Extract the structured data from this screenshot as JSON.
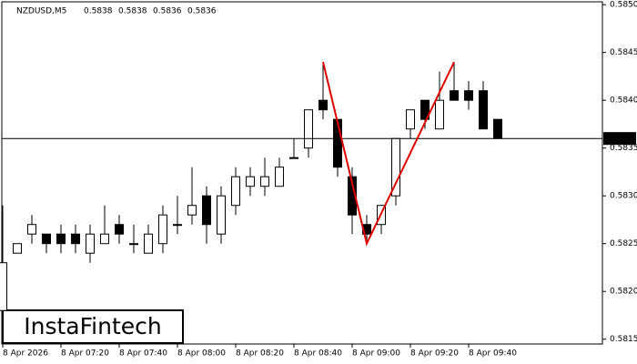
{
  "chart_data": {
    "type": "candlestick",
    "title": "NZDUSD,M5",
    "quote": [
      0.5838,
      0.5838,
      0.5836,
      0.5836
    ],
    "logo": "InstaFintech",
    "categories": [
      "8 Apr 2026",
      null,
      null,
      null,
      "8 Apr 07:20",
      null,
      null,
      null,
      "8 Apr 07:40",
      null,
      null,
      null,
      "8 Apr 08:00",
      null,
      null,
      null,
      "8 Apr 08:20",
      null,
      null,
      null,
      "8 Apr 08:40",
      null,
      null,
      null,
      "8 Apr 09:00",
      null,
      null,
      null,
      "8 Apr 09:20",
      null,
      null,
      null,
      "8 Apr 09:40",
      null,
      null
    ],
    "open": [
      0.5818,
      0.5824,
      0.5826,
      0.5826,
      0.5826,
      0.5826,
      0.5824,
      0.5825,
      0.5827,
      0.5825,
      0.5824,
      0.5825,
      0.5827,
      0.5828,
      0.583,
      0.5826,
      0.5829,
      0.5831,
      0.5831,
      0.5831,
      0.5834,
      0.5835,
      0.584,
      0.5838,
      0.5832,
      0.5827,
      0.5827,
      0.583,
      0.5837,
      0.584,
      0.5837,
      0.5841,
      0.5841,
      0.5841,
      0.5838
    ],
    "high": [
      0.5829,
      0.5825,
      0.5828,
      0.5826,
      0.5827,
      0.5827,
      0.5827,
      0.5829,
      0.5828,
      0.5827,
      0.5827,
      0.5829,
      0.583,
      0.5833,
      0.5831,
      0.5831,
      0.5833,
      0.5833,
      0.5834,
      0.5834,
      0.5836,
      0.5839,
      0.5844,
      0.5838,
      0.5833,
      0.5828,
      0.5829,
      0.5836,
      0.5839,
      0.584,
      0.5843,
      0.5844,
      0.5842,
      0.5842,
      0.5838
    ],
    "low": [
      0.5818,
      0.5824,
      0.5825,
      0.5824,
      0.5824,
      0.5824,
      0.5823,
      0.5825,
      0.5825,
      0.5824,
      0.5824,
      0.5824,
      0.5826,
      0.5827,
      0.5825,
      0.5825,
      0.5828,
      0.583,
      0.583,
      0.5831,
      0.5834,
      0.5834,
      0.5838,
      0.5832,
      0.5826,
      0.5825,
      0.5826,
      0.5829,
      0.5836,
      0.5837,
      0.5837,
      0.584,
      0.5839,
      0.5837,
      0.5836
    ],
    "close": [
      0.5823,
      0.5825,
      0.5827,
      0.5825,
      0.5825,
      0.5825,
      0.5826,
      0.5826,
      0.5826,
      0.5825,
      0.5826,
      0.5828,
      0.5827,
      0.5829,
      0.5827,
      0.583,
      0.5832,
      0.5832,
      0.5832,
      0.5833,
      0.5834,
      0.5839,
      0.5839,
      0.5833,
      0.5828,
      0.5826,
      0.5829,
      0.5836,
      0.5839,
      0.5838,
      0.584,
      0.584,
      0.584,
      0.5837,
      0.5836
    ],
    "up_color": "#ffffff",
    "down_color": "#000000",
    "current_price": 0.5836,
    "pattern": {
      "color": "#e00000",
      "x": [
        22,
        25,
        31
      ],
      "values": [
        0.5844,
        0.5825,
        0.5844
      ]
    },
    "ylim": [
      0.58145,
      0.58503
    ],
    "yticks": [
      0.5815,
      {
        "value": 0.582,
        "label": "0.5820"
      },
      0.5825,
      {
        "value": 0.583,
        "label": "0.5830"
      },
      0.5835,
      {
        "value": 0.584,
        "label": "0.5840"
      },
      0.5845,
      {
        "value": 0.585,
        "label": "0.5850"
      }
    ]
  }
}
